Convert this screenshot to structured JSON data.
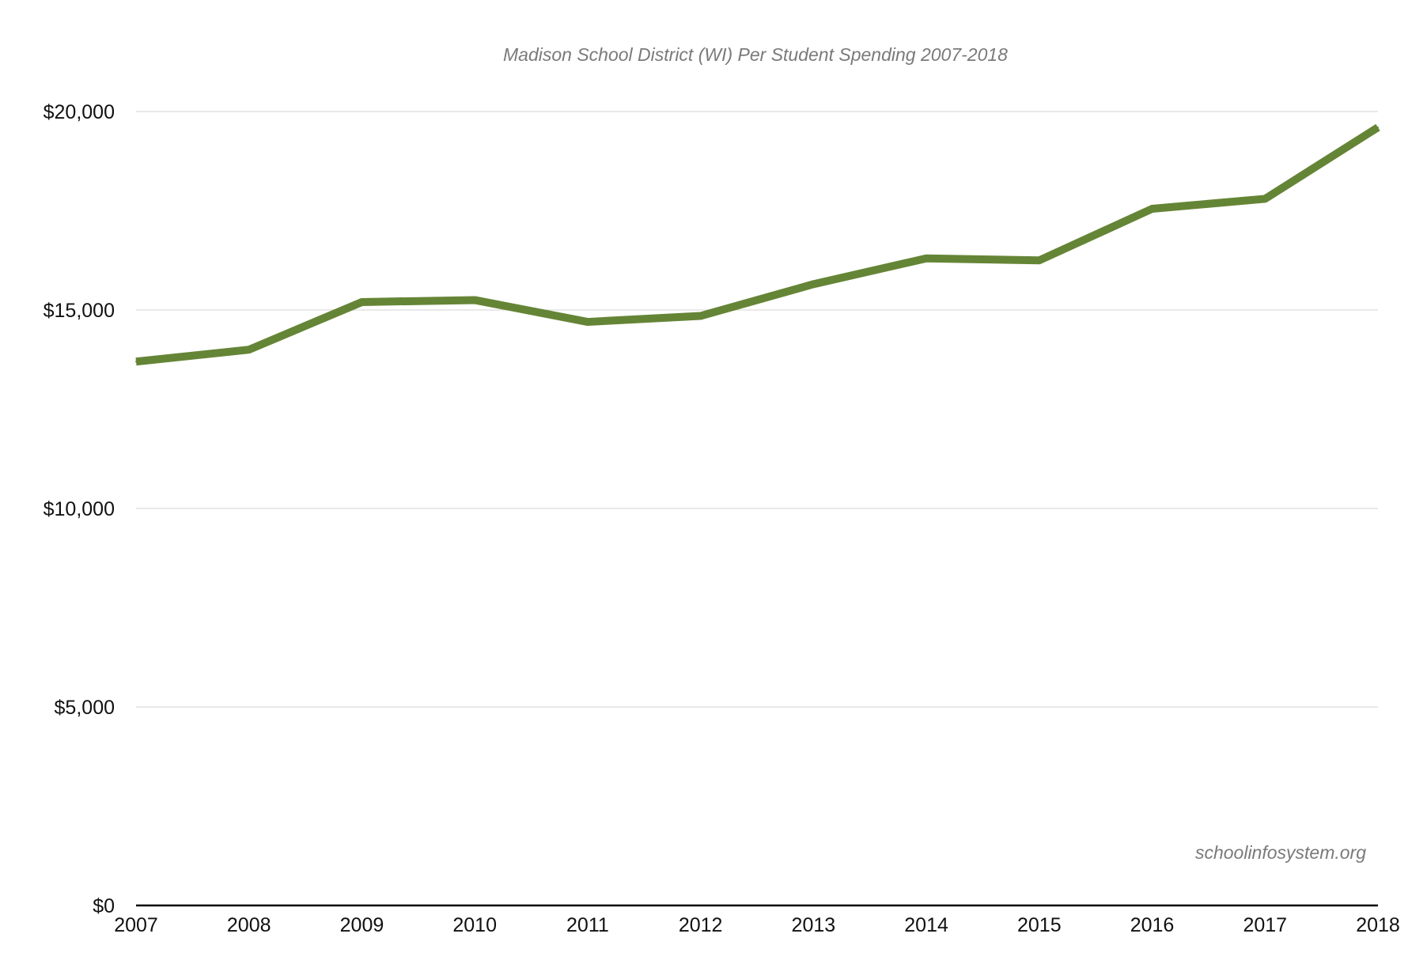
{
  "chart_data": {
    "type": "line",
    "title": "Madison School District (WI) Per Student Spending 2007-2018",
    "xlabel": "",
    "ylabel": "",
    "categories": [
      "2007",
      "2008",
      "2009",
      "2010",
      "2011",
      "2012",
      "2013",
      "2014",
      "2015",
      "2016",
      "2017",
      "2018"
    ],
    "series": [
      {
        "name": "Per Student Spending",
        "color": "#658536",
        "values": [
          13700,
          14000,
          15200,
          15250,
          14700,
          14850,
          15650,
          16300,
          16250,
          17550,
          17800,
          19600
        ]
      }
    ],
    "ylim": [
      0,
      20000
    ],
    "yticks": [
      {
        "value": 0,
        "label": "$0"
      },
      {
        "value": 5000,
        "label": "$5,000"
      },
      {
        "value": 10000,
        "label": "$10,000"
      },
      {
        "value": 15000,
        "label": "$15,000"
      },
      {
        "value": 20000,
        "label": "$20,000"
      }
    ],
    "grid": true,
    "legend": "none",
    "source_note": "schoolinfosystem.org"
  }
}
